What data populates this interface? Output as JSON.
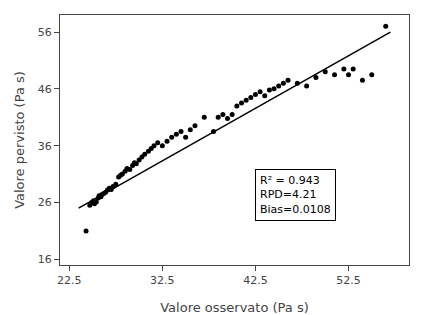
{
  "chart_data": {
    "type": "scatter",
    "xlabel": "Valore osservato (Pa s)",
    "ylabel": "Valore pervisto (Pa s)",
    "xlim": [
      21.5,
      59
    ],
    "ylim": [
      15,
      59
    ],
    "xticks": [
      22.5,
      32.5,
      42.5,
      52.5
    ],
    "yticks": [
      16,
      26,
      36,
      46,
      56
    ],
    "grid": false,
    "series": [
      {
        "type": "scatter",
        "marker": "circle",
        "color": "#000000",
        "x": [
          24.3,
          24.7,
          24.9,
          25.1,
          25.2,
          25.4,
          25.6,
          25.7,
          25.9,
          26.0,
          26.2,
          26.4,
          26.6,
          26.8,
          27.0,
          27.2,
          27.5,
          27.8,
          28.0,
          28.2,
          28.5,
          28.7,
          29.0,
          29.3,
          29.5,
          29.7,
          30.0,
          30.3,
          30.6,
          31.0,
          31.3,
          31.6,
          32.0,
          32.5,
          33.0,
          33.5,
          34.0,
          34.5,
          35.0,
          35.5,
          36.0,
          37.0,
          38.0,
          38.5,
          39.0,
          39.5,
          40.0,
          40.5,
          41.0,
          41.5,
          42.0,
          42.5,
          43.0,
          43.5,
          44.0,
          44.5,
          45.0,
          45.5,
          46.0,
          47.0,
          48.0,
          49.0,
          50.0,
          51.0,
          52.0,
          52.5,
          53.0,
          54.0,
          55.0,
          56.5
        ],
        "values": [
          21.0,
          25.5,
          26.0,
          26.3,
          25.8,
          26.1,
          26.8,
          27.2,
          27.0,
          27.4,
          27.6,
          27.8,
          28.2,
          28.5,
          28.3,
          28.8,
          29.2,
          30.5,
          30.8,
          31.0,
          31.5,
          32.0,
          31.8,
          32.5,
          33.0,
          32.8,
          33.5,
          34.0,
          34.5,
          35.0,
          35.5,
          36.0,
          36.5,
          36.0,
          36.8,
          37.5,
          38.0,
          38.5,
          37.5,
          38.8,
          39.5,
          41.0,
          38.5,
          41.0,
          41.5,
          40.8,
          41.5,
          43.0,
          43.5,
          44.0,
          44.5,
          45.0,
          45.5,
          44.8,
          45.8,
          46.0,
          46.5,
          47.0,
          47.5,
          47.0,
          46.5,
          48.0,
          49.0,
          48.5,
          49.5,
          48.5,
          49.5,
          47.5,
          48.5,
          57.0
        ]
      },
      {
        "type": "line",
        "line_style": "solid",
        "color": "#000000",
        "x": [
          23.5,
          57.0
        ],
        "values": [
          25.0,
          56.0
        ]
      }
    ],
    "annotations": [
      "R² = 0.943",
      "RPD=4.21",
      "Bias=0.0108"
    ]
  }
}
